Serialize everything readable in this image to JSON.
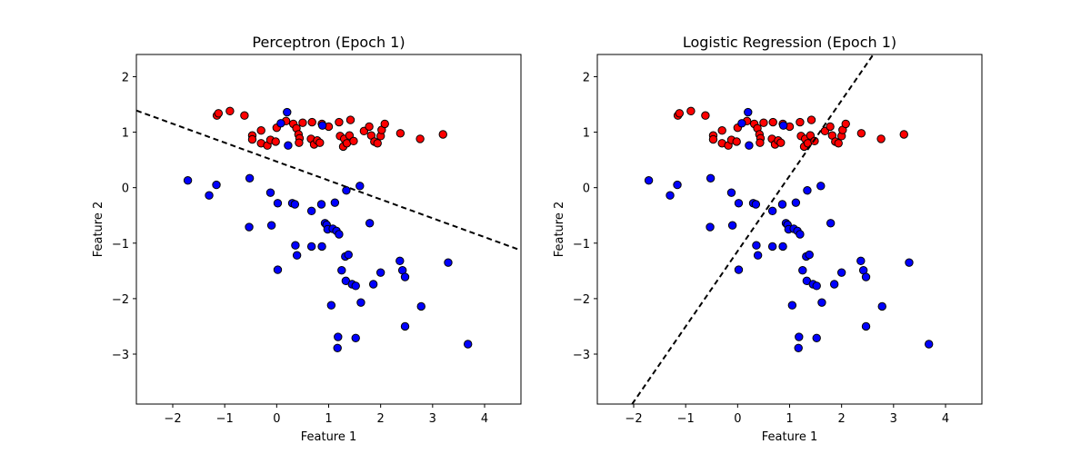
{
  "chart_data": [
    {
      "type": "scatter",
      "title": "Perceptron (Epoch 1)",
      "xlabel": "Feature 1",
      "ylabel": "Feature 2",
      "xlim": [
        -2.7,
        4.7
      ],
      "ylim": [
        -3.9,
        2.4
      ],
      "xticks": [
        -2,
        -1,
        0,
        1,
        2,
        3,
        4
      ],
      "yticks": [
        -3,
        -2,
        -1,
        0,
        1,
        2
      ],
      "xtick_labels": [
        "−2",
        "−1",
        "0",
        "1",
        "2",
        "3",
        "4"
      ],
      "ytick_labels": [
        "−3",
        "−2",
        "−1",
        "0",
        "1",
        "2"
      ],
      "grid": false,
      "decision_boundary": {
        "style": "dashed",
        "color": "#000000",
        "points": [
          [
            -2.7,
            1.39
          ],
          [
            4.7,
            -1.13
          ]
        ]
      }
    },
    {
      "type": "scatter",
      "title": "Logistic Regression (Epoch 1)",
      "xlabel": "Feature 1",
      "ylabel": "Feature 2",
      "xlim": [
        -2.7,
        4.7
      ],
      "ylim": [
        -3.9,
        2.4
      ],
      "xticks": [
        -2,
        -1,
        0,
        1,
        2,
        3,
        4
      ],
      "yticks": [
        -3,
        -2,
        -1,
        0,
        1,
        2
      ],
      "xtick_labels": [
        "−2",
        "−1",
        "0",
        "1",
        "2",
        "3",
        "4"
      ],
      "ytick_labels": [
        "−3",
        "−2",
        "−1",
        "0",
        "1",
        "2"
      ],
      "grid": false,
      "decision_boundary": {
        "style": "dashed",
        "color": "#000000",
        "points": [
          [
            -2.03,
            -3.9
          ],
          [
            2.61,
            2.4
          ]
        ]
      }
    }
  ],
  "series": [
    {
      "color": "#ff0000",
      "points": [
        [
          -1.15,
          1.3
        ],
        [
          -1.12,
          1.34
        ],
        [
          -0.9,
          1.38
        ],
        [
          -0.62,
          1.3
        ],
        [
          -0.47,
          0.94
        ],
        [
          -0.47,
          0.87
        ],
        [
          -0.3,
          1.03
        ],
        [
          -0.3,
          0.8
        ],
        [
          -0.18,
          0.76
        ],
        [
          -0.12,
          0.86
        ],
        [
          0.0,
          1.08
        ],
        [
          -0.02,
          0.83
        ],
        [
          0.18,
          1.2
        ],
        [
          0.32,
          1.15
        ],
        [
          0.38,
          1.07
        ],
        [
          0.42,
          0.96
        ],
        [
          0.44,
          0.89
        ],
        [
          0.43,
          0.81
        ],
        [
          0.5,
          1.17
        ],
        [
          0.68,
          1.18
        ],
        [
          0.66,
          0.88
        ],
        [
          0.72,
          0.78
        ],
        [
          0.78,
          0.85
        ],
        [
          0.83,
          0.81
        ],
        [
          0.87,
          1.15
        ],
        [
          1.0,
          1.1
        ],
        [
          1.2,
          1.18
        ],
        [
          1.22,
          0.93
        ],
        [
          1.3,
          0.88
        ],
        [
          1.28,
          0.74
        ],
        [
          1.35,
          0.8
        ],
        [
          1.4,
          0.94
        ],
        [
          1.48,
          0.84
        ],
        [
          1.42,
          1.22
        ],
        [
          1.68,
          1.02
        ],
        [
          1.78,
          1.1
        ],
        [
          1.82,
          0.94
        ],
        [
          1.88,
          0.83
        ],
        [
          1.94,
          0.8
        ],
        [
          2.0,
          0.93
        ],
        [
          2.02,
          1.04
        ],
        [
          2.08,
          1.15
        ],
        [
          2.38,
          0.98
        ],
        [
          2.76,
          0.88
        ],
        [
          3.2,
          0.96
        ]
      ]
    },
    {
      "color": "#0000ff",
      "points": [
        [
          0.08,
          1.16
        ],
        [
          0.2,
          1.36
        ],
        [
          0.22,
          0.76
        ],
        [
          0.88,
          1.12
        ],
        [
          -1.71,
          0.13
        ],
        [
          -1.3,
          -0.14
        ],
        [
          -1.16,
          0.05
        ],
        [
          -0.52,
          0.17
        ],
        [
          -0.53,
          -0.71
        ],
        [
          -0.12,
          -0.09
        ],
        [
          -0.1,
          -0.68
        ],
        [
          0.02,
          -0.28
        ],
        [
          0.3,
          -0.28
        ],
        [
          0.35,
          -0.3
        ],
        [
          0.36,
          -1.04
        ],
        [
          0.39,
          -1.22
        ],
        [
          0.67,
          -0.42
        ],
        [
          0.67,
          -1.06
        ],
        [
          0.86,
          -0.3
        ],
        [
          0.87,
          -1.06
        ],
        [
          0.93,
          -0.64
        ],
        [
          0.96,
          -0.67
        ],
        [
          0.98,
          -0.75
        ],
        [
          1.08,
          -0.74
        ],
        [
          1.12,
          -0.27
        ],
        [
          1.15,
          -0.78
        ],
        [
          1.2,
          -0.84
        ],
        [
          1.32,
          -1.24
        ],
        [
          1.38,
          -1.21
        ],
        [
          1.25,
          -1.49
        ],
        [
          1.34,
          -0.05
        ],
        [
          1.6,
          0.03
        ],
        [
          1.79,
          -0.64
        ],
        [
          1.33,
          -1.68
        ],
        [
          1.45,
          -1.74
        ],
        [
          1.52,
          -1.77
        ],
        [
          1.05,
          -2.12
        ],
        [
          1.62,
          -2.07
        ],
        [
          1.86,
          -1.74
        ],
        [
          2.0,
          -1.53
        ],
        [
          2.37,
          -1.32
        ],
        [
          2.42,
          -1.49
        ],
        [
          2.47,
          -1.61
        ],
        [
          2.78,
          -2.14
        ],
        [
          1.18,
          -2.69
        ],
        [
          1.17,
          -2.89
        ],
        [
          1.52,
          -2.71
        ],
        [
          2.47,
          -2.5
        ],
        [
          3.3,
          -1.35
        ],
        [
          3.68,
          -2.82
        ],
        [
          0.02,
          -1.48
        ]
      ]
    }
  ]
}
